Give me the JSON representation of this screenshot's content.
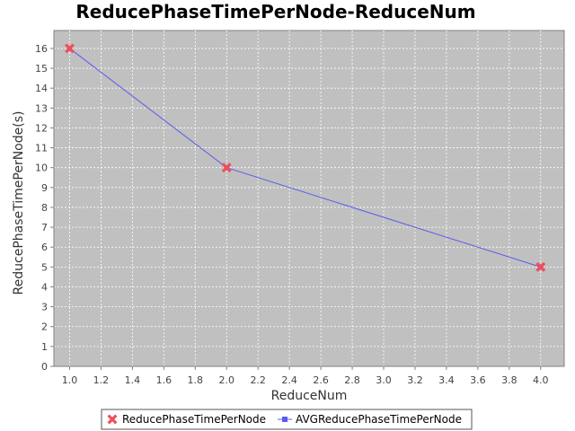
{
  "chart_data": {
    "type": "line",
    "title": "ReducePhaseTimePerNode-ReduceNum",
    "xlabel": "ReduceNum",
    "ylabel": "ReducePhaseTimePerNode(s)",
    "xlim": [
      0.9,
      4.15
    ],
    "ylim": [
      0,
      16.9
    ],
    "x_ticks": [
      "1.0",
      "1.2",
      "1.4",
      "1.6",
      "1.8",
      "2.0",
      "2.2",
      "2.4",
      "2.6",
      "2.8",
      "3.0",
      "3.2",
      "3.4",
      "3.6",
      "3.8",
      "4.0"
    ],
    "y_ticks": [
      "0",
      "1",
      "2",
      "3",
      "4",
      "5",
      "6",
      "7",
      "8",
      "9",
      "10",
      "11",
      "12",
      "13",
      "14",
      "15",
      "16"
    ],
    "grid": true,
    "legend_position": "bottom",
    "series": [
      {
        "name": "ReducePhaseTimePerNode",
        "x": [
          1.0,
          2.0,
          4.0
        ],
        "values": [
          16,
          10,
          5
        ],
        "color": "#f0505a",
        "marker": "x"
      },
      {
        "name": "AVGReducePhaseTimePerNode",
        "x": [
          1.0,
          2.0,
          4.0
        ],
        "values": [
          16,
          10,
          5
        ],
        "color": "#5a5af0",
        "marker": "square"
      }
    ],
    "plot_background": "#c0c0c0"
  }
}
